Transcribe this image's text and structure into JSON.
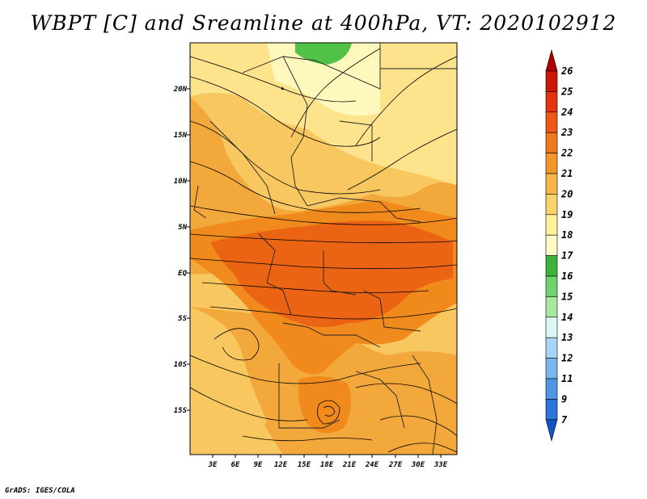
{
  "title": "WBPT [C] and Sreamline at 400hPa, VT: 2020102912",
  "footer": "GrADS: IGES/COLA",
  "map": {
    "lat_labels": [
      "20N",
      "15N",
      "10N",
      "5N",
      "EQ",
      "5S",
      "10S",
      "15S"
    ],
    "lon_labels": [
      "3E",
      "6E",
      "9E",
      "12E",
      "15E",
      "18E",
      "21E",
      "24E",
      "27E",
      "30E",
      "33E"
    ],
    "field": "WBPT",
    "field_unit": "C",
    "level": "400hPa",
    "colors": {
      "c18": "#fff8bd",
      "c19": "#fde38c",
      "c20": "#f9c760",
      "c21": "#f3a83b",
      "c22": "#f08a1c",
      "c23": "#ea6413",
      "green": "#4fc247",
      "light_green": "#7ad66c"
    }
  },
  "colorbar": {
    "labels": [
      "26",
      "25",
      "24",
      "23",
      "22",
      "21",
      "20",
      "19",
      "18",
      "17",
      "16",
      "15",
      "14",
      "13",
      "12",
      "11",
      "9",
      "7"
    ],
    "colors": [
      "#b10000",
      "#cf1508",
      "#e4340f",
      "#ef5716",
      "#f2781e",
      "#f4962a",
      "#f8b548",
      "#fbd26a",
      "#fff09a",
      "#fff9c4",
      "#3ab53a",
      "#6fd26c",
      "#a7e8a0",
      "#dbf6f4",
      "#a6d6f4",
      "#78b7ee",
      "#4f96e6",
      "#2b72d9",
      "#1154c7"
    ]
  }
}
